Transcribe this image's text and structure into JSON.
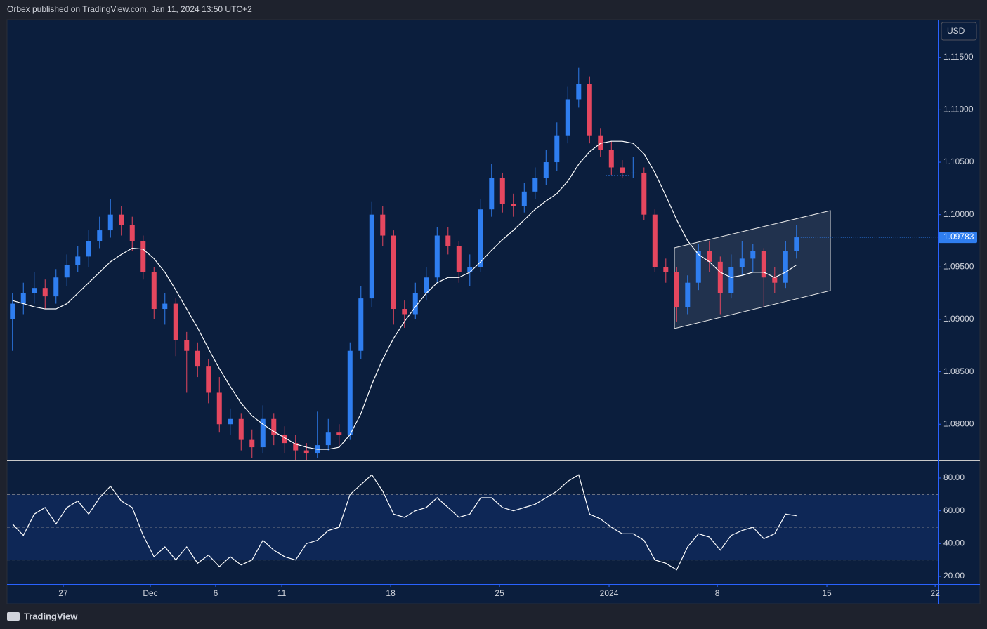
{
  "header": "Orbex published on TradingView.com, Jan 11, 2024 13:50 UTC+2",
  "footer_brand": "TradingView",
  "chart_data": [
    {
      "type": "candlestick",
      "currency": "USD",
      "up_color": "#2f7ef0",
      "down_color": "#e5475f",
      "ylim": [
        1.0766,
        1.1186
      ],
      "yticks": [
        {
          "value": 1.08,
          "label": "1.08000"
        },
        {
          "value": 1.085,
          "label": "1.08500"
        },
        {
          "value": 1.09,
          "label": "1.09000"
        },
        {
          "value": 1.095,
          "label": "1.09500"
        },
        {
          "value": 1.1,
          "label": "1.10000"
        },
        {
          "value": 1.105,
          "label": "1.10500"
        },
        {
          "value": 1.11,
          "label": "1.11000"
        },
        {
          "value": 1.115,
          "label": "1.11500"
        }
      ],
      "last_price_label": "1.09783",
      "open": [
        1.09,
        1.0915,
        1.0925,
        1.093,
        1.0922,
        1.094,
        1.0952,
        1.096,
        1.0975,
        1.0985,
        1.1,
        1.099,
        1.0975,
        1.0945,
        1.091,
        1.0915,
        1.088,
        1.087,
        1.0855,
        1.083,
        1.08,
        1.0805,
        1.0785,
        1.0778,
        1.0805,
        1.079,
        1.0782,
        1.0775,
        1.0772,
        1.078,
        1.0792,
        1.079,
        1.087,
        1.092,
        1.1,
        1.098,
        1.091,
        1.0905,
        1.0925,
        1.094,
        1.098,
        1.097,
        1.0945,
        1.095,
        1.1005,
        1.1035,
        1.101,
        1.1008,
        1.1022,
        1.1035,
        1.105,
        1.1075,
        1.111,
        1.1125,
        1.1075,
        1.1062,
        1.1045,
        1.104,
        1.104,
        1.1,
        1.095,
        1.0945,
        1.0912,
        1.0935,
        1.0965,
        1.0955,
        1.0925,
        1.095,
        1.0958,
        1.0965,
        1.094,
        1.0935,
        1.0965
      ],
      "high": [
        1.0925,
        1.0935,
        1.0945,
        1.0938,
        1.0948,
        1.0962,
        1.097,
        1.0985,
        1.0998,
        1.1015,
        1.1008,
        1.0998,
        1.098,
        1.095,
        1.0925,
        1.092,
        1.0888,
        1.0878,
        1.0862,
        1.0845,
        1.0815,
        1.081,
        1.0795,
        1.0818,
        1.081,
        1.0798,
        1.079,
        1.0782,
        1.0812,
        1.0805,
        1.08,
        1.0878,
        1.0932,
        1.1012,
        1.1008,
        1.0985,
        1.0918,
        1.0935,
        1.095,
        1.0988,
        1.0988,
        1.0975,
        1.0962,
        1.1015,
        1.1048,
        1.104,
        1.102,
        1.103,
        1.1045,
        1.1062,
        1.1088,
        1.1122,
        1.114,
        1.1132,
        1.1082,
        1.107,
        1.1052,
        1.1055,
        1.1045,
        1.1005,
        1.0958,
        1.095,
        1.0942,
        1.0972,
        1.0975,
        1.096,
        1.0962,
        1.0975,
        1.0972,
        1.0968,
        1.095,
        1.0975,
        1.099
      ],
      "low": [
        1.087,
        1.0905,
        1.0915,
        1.091,
        1.0915,
        1.0932,
        1.0945,
        1.095,
        1.0968,
        1.0978,
        1.098,
        1.0965,
        1.0938,
        1.09,
        1.0895,
        1.0865,
        1.083,
        1.0845,
        1.082,
        1.0792,
        1.079,
        1.0775,
        1.0768,
        1.0772,
        1.078,
        1.0772,
        1.0766,
        1.0766,
        1.0768,
        1.0775,
        1.0778,
        1.0785,
        1.0862,
        1.0912,
        1.097,
        1.0895,
        1.0892,
        1.09,
        1.0918,
        1.0935,
        1.0962,
        1.0935,
        1.0932,
        1.0945,
        1.0998,
        1.1002,
        1.0998,
        1.1002,
        1.1015,
        1.1028,
        1.1042,
        1.1068,
        1.1102,
        1.1068,
        1.1055,
        1.1038,
        1.1035,
        1.1035,
        1.0995,
        1.0945,
        1.0935,
        1.0898,
        1.0905,
        1.0928,
        1.0945,
        1.0905,
        1.092,
        1.0942,
        1.0945,
        1.0912,
        1.0925,
        1.093,
        1.0958
      ],
      "close": [
        1.0915,
        1.0925,
        1.093,
        1.0922,
        1.094,
        1.0952,
        1.096,
        1.0975,
        1.0985,
        1.1,
        1.099,
        1.0975,
        1.0945,
        1.091,
        1.0915,
        1.088,
        1.087,
        1.0855,
        1.083,
        1.08,
        1.0805,
        1.0785,
        1.0778,
        1.0805,
        1.079,
        1.0782,
        1.0775,
        1.0772,
        1.078,
        1.0792,
        1.079,
        1.087,
        1.092,
        1.1,
        1.098,
        1.091,
        1.0905,
        1.0925,
        1.094,
        1.098,
        1.097,
        1.0945,
        1.095,
        1.1005,
        1.1035,
        1.101,
        1.1008,
        1.1022,
        1.1035,
        1.105,
        1.1075,
        1.111,
        1.1125,
        1.1075,
        1.1062,
        1.1045,
        1.104,
        1.104,
        1.1,
        1.095,
        1.0945,
        1.0912,
        1.0935,
        1.0965,
        1.0955,
        1.0925,
        1.095,
        1.0958,
        1.0965,
        1.094,
        1.0935,
        1.0965,
        1.09783
      ],
      "ma": {
        "color": "#ffffff",
        "values": [
          1.0918,
          1.0915,
          1.0912,
          1.091,
          1.091,
          1.0915,
          1.0925,
          1.0935,
          1.0945,
          1.0955,
          1.0962,
          1.0968,
          1.0967,
          1.0958,
          1.0945,
          1.0928,
          1.091,
          1.0892,
          1.0872,
          1.0853,
          1.0836,
          1.082,
          1.0808,
          1.08,
          1.0793,
          1.0787,
          1.0781,
          1.0778,
          1.0776,
          1.0776,
          1.0778,
          1.079,
          1.081,
          1.0838,
          1.0862,
          1.0882,
          1.0898,
          1.0912,
          1.0925,
          1.0935,
          1.094,
          1.094,
          1.0945,
          1.0955,
          1.0966,
          1.0976,
          1.0985,
          1.0995,
          1.1005,
          1.1013,
          1.102,
          1.1032,
          1.1048,
          1.106,
          1.1068,
          1.107,
          1.107,
          1.1068,
          1.1058,
          1.104,
          1.1018,
          1.0995,
          1.0975,
          1.0962,
          1.0955,
          1.0945,
          1.094,
          1.0942,
          1.0945,
          1.0945,
          1.094,
          1.0945,
          1.0952
        ]
      }
    },
    {
      "type": "line",
      "color": "#ffffff",
      "ylim": [
        15.3,
        90.7
      ],
      "yticks": [
        {
          "value": 20,
          "label": "20.00"
        },
        {
          "value": 40,
          "label": "40.00"
        },
        {
          "value": 60,
          "label": "60.00"
        },
        {
          "value": 80,
          "label": "80.00"
        }
      ],
      "levels": [
        30,
        50,
        70
      ],
      "xlim": [
        0,
        85.48
      ],
      "xticks": [
        {
          "value": 5.16,
          "label": "27"
        },
        {
          "value": 13.16,
          "label": "Dec"
        },
        {
          "value": 19.16,
          "label": "6"
        },
        {
          "value": 25.23,
          "label": "11"
        },
        {
          "value": 35.23,
          "label": "18"
        },
        {
          "value": 45.23,
          "label": "25"
        },
        {
          "value": 55.29,
          "label": "2024"
        },
        {
          "value": 65.23,
          "label": "8"
        },
        {
          "value": 75.29,
          "label": "15"
        },
        {
          "value": 85.23,
          "label": "22"
        }
      ],
      "values": [
        52,
        45,
        58,
        62,
        52,
        62,
        66,
        58,
        68,
        75,
        66,
        62,
        45,
        32,
        38,
        30,
        38,
        28,
        33,
        26,
        32,
        27,
        30,
        42,
        36,
        32,
        30,
        40,
        42,
        48,
        50,
        70,
        76,
        82,
        72,
        58,
        56,
        60,
        62,
        68,
        62,
        56,
        58,
        68,
        68,
        62,
        60,
        62,
        64,
        68,
        72,
        78,
        82,
        58,
        55,
        50,
        46,
        46,
        42,
        30,
        28,
        24,
        38,
        46,
        44,
        36,
        45,
        48,
        50,
        43,
        46,
        58,
        57
      ]
    }
  ]
}
